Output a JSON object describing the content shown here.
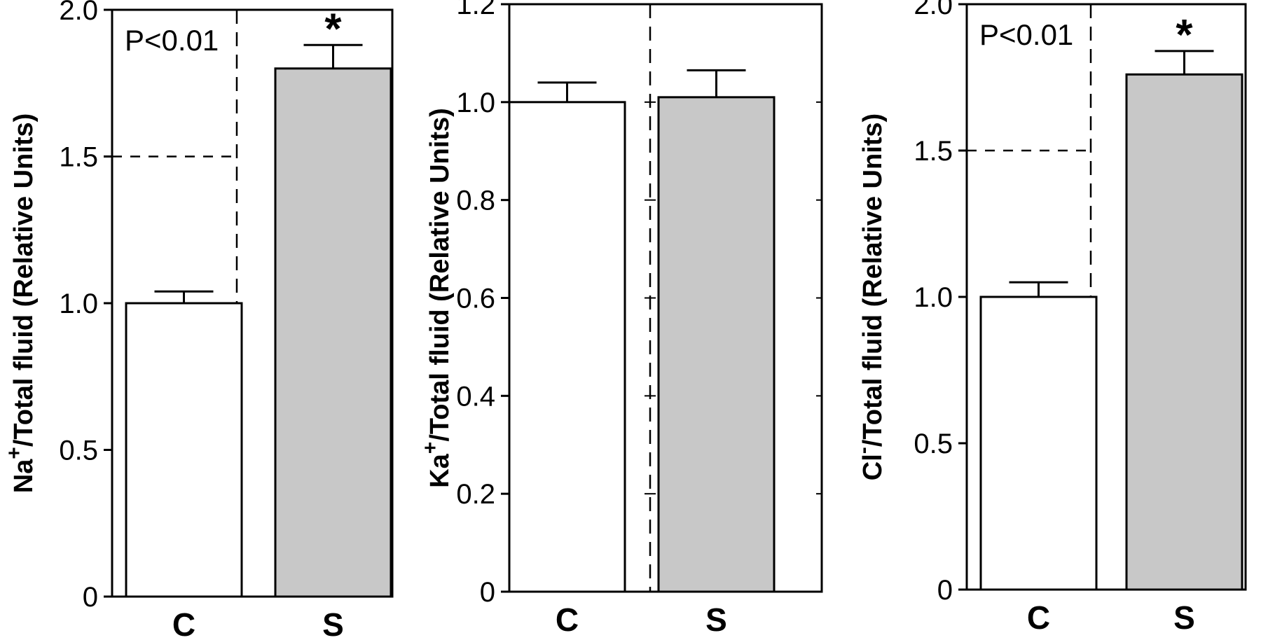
{
  "chart_data": [
    {
      "type": "bar",
      "categories": [
        "C",
        "S"
      ],
      "values": [
        1.0,
        1.8
      ],
      "errors": [
        0.04,
        0.08
      ],
      "ylim": [
        0,
        2.0
      ],
      "yticks": [
        "0",
        "0.5",
        "1.0",
        "1.5",
        "2.0"
      ],
      "ylabel": {
        "pre": "Na",
        "sup": "+",
        "post": "/Total fluid (Relative Units)"
      },
      "annotation": "P<0.01",
      "significance": [
        "",
        "*"
      ],
      "colors": [
        "#ffffff",
        "#c8c8c8"
      ]
    },
    {
      "type": "bar",
      "categories": [
        "C",
        "S"
      ],
      "values": [
        1.0,
        1.01
      ],
      "errors": [
        0.04,
        0.055
      ],
      "ylim": [
        0,
        1.2
      ],
      "yticks": [
        "0",
        "0.2",
        "0.4",
        "0.6",
        "0.8",
        "1.0",
        "1.2"
      ],
      "ylabel": {
        "pre": "Ka",
        "sup": "+",
        "post": "/Total fluid (Relative Units)"
      },
      "annotation": "",
      "significance": [
        "",
        ""
      ],
      "colors": [
        "#ffffff",
        "#c8c8c8"
      ]
    },
    {
      "type": "bar",
      "categories": [
        "C",
        "S"
      ],
      "values": [
        1.0,
        1.76
      ],
      "errors": [
        0.05,
        0.08
      ],
      "ylim": [
        0,
        2.0
      ],
      "yticks": [
        "0",
        "0.5",
        "1.0",
        "1.5",
        "2.0"
      ],
      "ylabel": {
        "pre": "Cl",
        "sup": "-",
        "post": "/Total fluid (Relative Units)"
      },
      "annotation": "P<0.01",
      "significance": [
        "",
        "*"
      ],
      "colors": [
        "#ffffff",
        "#c8c8c8"
      ]
    }
  ]
}
